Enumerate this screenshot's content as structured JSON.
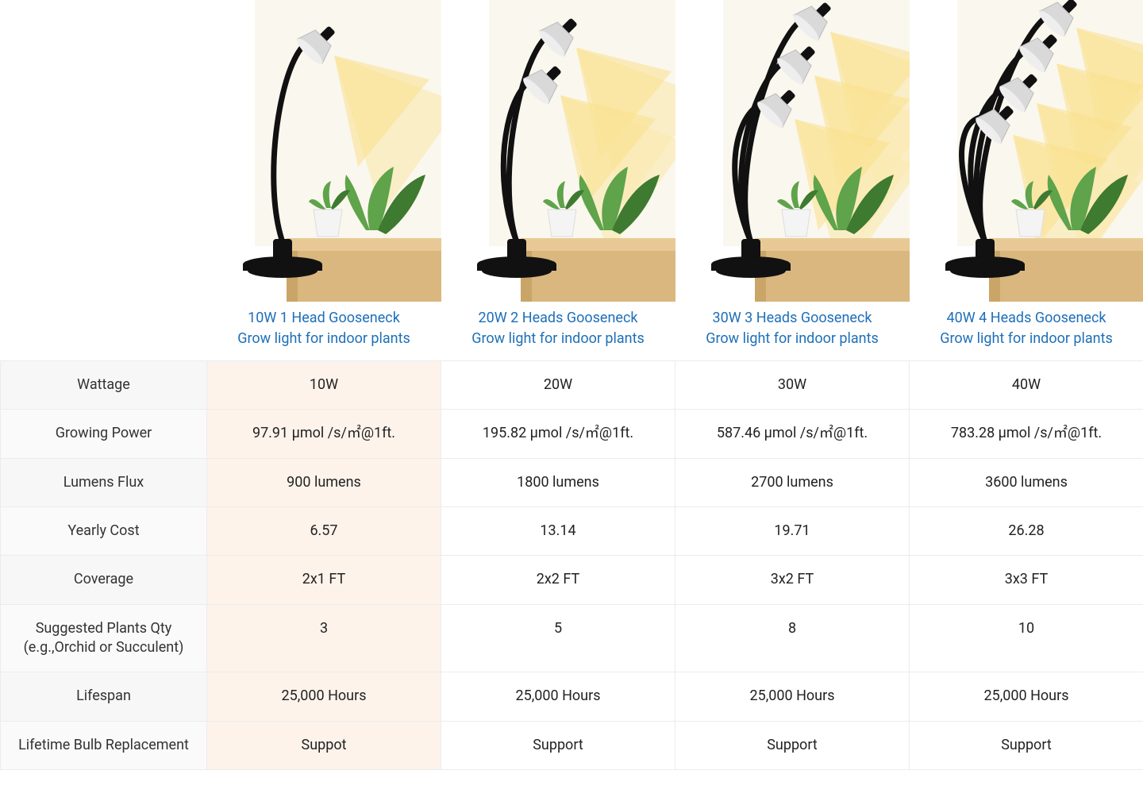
{
  "table": {
    "highlight_column_index": 0,
    "colors": {
      "link": "#1e6fb8",
      "border": "#ececec",
      "label_bg": "#fafafa",
      "highlight_bg": "#fdf3eb",
      "text": "#222222",
      "light_yellow": "#fbeab0",
      "light_yellow2": "#f9e08a",
      "table_wood": "#e8c995",
      "pot_white": "#f4f4f4",
      "plant_green": "#5fa34a",
      "plant_green_dark": "#3e7a2f",
      "wall": "#f7f1e3"
    },
    "products": [
      {
        "id": "10w-1-head",
        "heads": 1,
        "title_line1": "10W 1  Head Gooseneck",
        "title_line2": "Grow light for indoor plants"
      },
      {
        "id": "20w-2-heads",
        "heads": 2,
        "title_line1": "20W 2 Heads Gooseneck",
        "title_line2": "Grow light for indoor plants"
      },
      {
        "id": "30w-3-heads",
        "heads": 3,
        "title_line1": "30W 3 Heads Gooseneck",
        "title_line2": "Grow light for indoor plants"
      },
      {
        "id": "40w-4-heads",
        "heads": 4,
        "title_line1": "40W 4 Heads Gooseneck",
        "title_line2": "Grow light for indoor plants"
      }
    ],
    "rows": [
      {
        "label": "Wattage",
        "cells": [
          "10W",
          "20W",
          "30W",
          "40W"
        ]
      },
      {
        "label": "Growing Power",
        "cells": [
          "97.91 μmol /s/㎡@1ft.",
          "195.82 μmol /s/㎡@1ft.",
          "587.46 μmol /s/㎡@1ft.",
          "783.28 μmol /s/㎡@1ft."
        ]
      },
      {
        "label": "Lumens Flux",
        "cells": [
          "900 lumens",
          "1800 lumens",
          "2700 lumens",
          "3600 lumens"
        ]
      },
      {
        "label": "Yearly Cost",
        "cells": [
          "6.57",
          "13.14",
          "19.71",
          "26.28"
        ]
      },
      {
        "label": "Coverage",
        "cells": [
          "2x1 FT",
          "2x2 FT",
          "3x2 FT",
          "3x3 FT"
        ]
      },
      {
        "label": "Suggested Plants Qty (e.g.,Orchid or Succulent)",
        "cells": [
          "3",
          "5",
          "8",
          "10"
        ]
      },
      {
        "label": "Lifespan",
        "cells": [
          "25,000 Hours",
          "25,000 Hours",
          "25,000 Hours",
          "25,000 Hours"
        ]
      },
      {
        "label": "Lifetime  Bulb Replacement",
        "cells": [
          "Suppot",
          "Support",
          "Support",
          "Support"
        ]
      }
    ]
  }
}
